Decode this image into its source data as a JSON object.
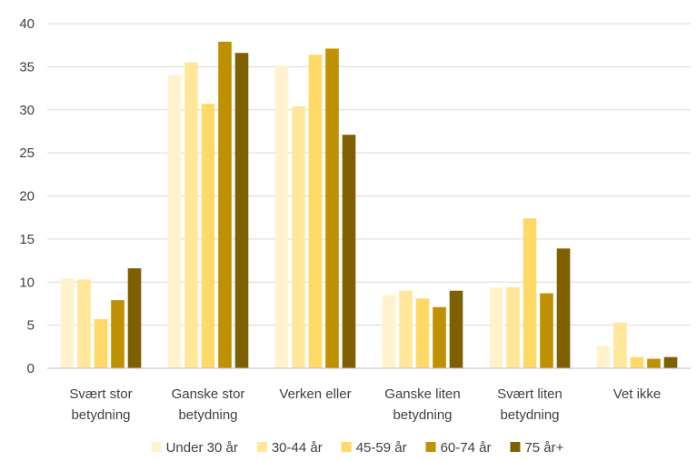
{
  "chart_data": {
    "type": "bar",
    "categories": [
      [
        "Svært stor",
        "betydning"
      ],
      [
        "Ganske stor",
        "betydning"
      ],
      [
        "Verken eller"
      ],
      [
        "Ganske liten",
        "betydning"
      ],
      [
        "Svært liten",
        "betydning"
      ],
      [
        "Vet ikke"
      ]
    ],
    "series": [
      {
        "name": "Under 30 år",
        "color": "#fff2cc",
        "values": [
          10.4,
          34.0,
          35.1,
          8.5,
          9.4,
          2.6
        ]
      },
      {
        "name": "30-44 år",
        "color": "#ffe699",
        "values": [
          10.3,
          35.5,
          30.4,
          9.0,
          9.4,
          5.3
        ]
      },
      {
        "name": "45-59 år",
        "color": "#ffd966",
        "values": [
          5.7,
          30.7,
          36.4,
          8.1,
          17.4,
          1.3
        ]
      },
      {
        "name": "60-74 år",
        "color": "#bf9000",
        "values": [
          7.9,
          37.9,
          37.1,
          7.1,
          8.7,
          1.1
        ]
      },
      {
        "name": "75 år+",
        "color": "#7f6000",
        "values": [
          11.6,
          36.6,
          27.1,
          9.0,
          13.9,
          1.3
        ]
      }
    ],
    "yticks": [
      "0",
      "5",
      "10",
      "15",
      "20",
      "25",
      "30",
      "35",
      "40"
    ],
    "ylim": [
      0,
      40
    ],
    "grid": true,
    "legend": "bottom"
  }
}
